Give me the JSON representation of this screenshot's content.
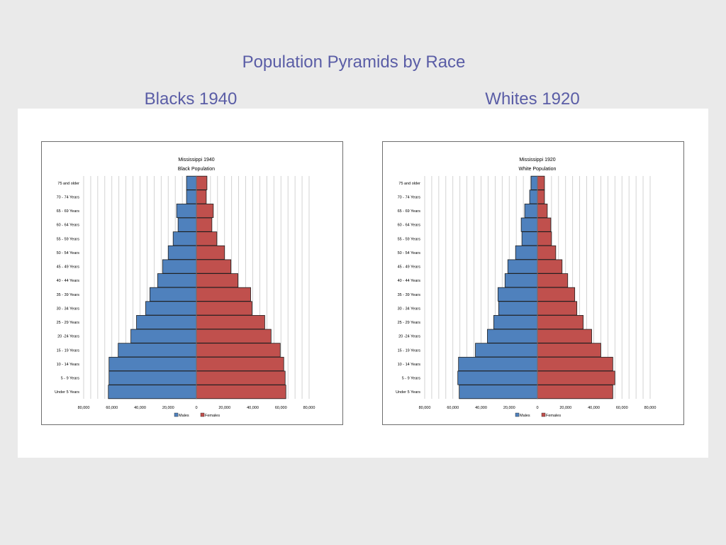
{
  "slide": {
    "title": "Population Pyramids by Race",
    "left_heading": "Blacks 1940",
    "right_heading": "Whites 1920"
  },
  "colors": {
    "title_text": "#5a5da6",
    "males": "#4f81bd",
    "females": "#c0504d"
  },
  "chart_data": [
    {
      "type": "bar",
      "orientation": "horizontal-pyramid",
      "title": "Mississippi 1940",
      "subtitle": "Black Population",
      "categories": [
        "75 and older",
        "70 - 74 Years",
        "65 - 69 Years",
        "60 - 64 Years",
        "55 - 59 Years",
        "50 - 54 Years",
        "45 - 49 Years",
        "40 - 44 Years",
        "35 - 39 Years",
        "30 - 34 Years",
        "25 - 29 Years",
        "20 -24 Years",
        "15 - 19 Years",
        "10 - 14 Years",
        "5 - 9 Years",
        "Under 5 Years"
      ],
      "series": [
        {
          "name": "Males",
          "values": [
            7000,
            7000,
            14000,
            13000,
            16500,
            20000,
            24000,
            27500,
            33000,
            36000,
            42500,
            46500,
            55500,
            62000,
            62000,
            62500
          ]
        },
        {
          "name": "Females",
          "values": [
            7500,
            7000,
            12000,
            11000,
            14500,
            20000,
            24500,
            29500,
            38500,
            39500,
            48500,
            53000,
            59500,
            62000,
            63000,
            63500
          ]
        }
      ],
      "xticks": [
        "80,000",
        "60,000",
        "40,000",
        "20,000",
        "0",
        "20,000",
        "40,000",
        "60,000",
        "80,000"
      ],
      "xlim": [
        -80000,
        80000
      ],
      "grid": true,
      "legend": "bottom"
    },
    {
      "type": "bar",
      "orientation": "horizontal-pyramid",
      "title": "Mississippi 1920",
      "subtitle": "White Population",
      "categories": [
        "75 and older",
        "70 - 74 Years",
        "65 - 69 Years",
        "60 - 64 Years",
        "55 - 59 Years",
        "50 - 54 Years",
        "45 - 49 Years",
        "40 - 44 Years",
        "35 - 39 Years",
        "30 - 34 Years",
        "25 - 29 Years",
        "20 -24 Years",
        "15 - 19 Years",
        "10 - 14 Years",
        "5 - 9 Years",
        "Under 5 Years"
      ],
      "series": [
        {
          "name": "Males",
          "values": [
            4500,
            5500,
            9000,
            11500,
            11000,
            15500,
            21000,
            23000,
            28000,
            27500,
            31000,
            35500,
            44000,
            56000,
            56500,
            55500
          ]
        },
        {
          "name": "Females",
          "values": [
            5000,
            5000,
            7000,
            9500,
            10000,
            13000,
            17500,
            21500,
            26500,
            28000,
            32500,
            38500,
            45000,
            53500,
            55000,
            53500
          ]
        }
      ],
      "xticks": [
        "80,000",
        "60,000",
        "40,000",
        "20,000",
        "0",
        "20,000",
        "40,000",
        "60,000",
        "80,000"
      ],
      "xlim": [
        -80000,
        80000
      ],
      "grid": true,
      "legend": "bottom"
    }
  ]
}
